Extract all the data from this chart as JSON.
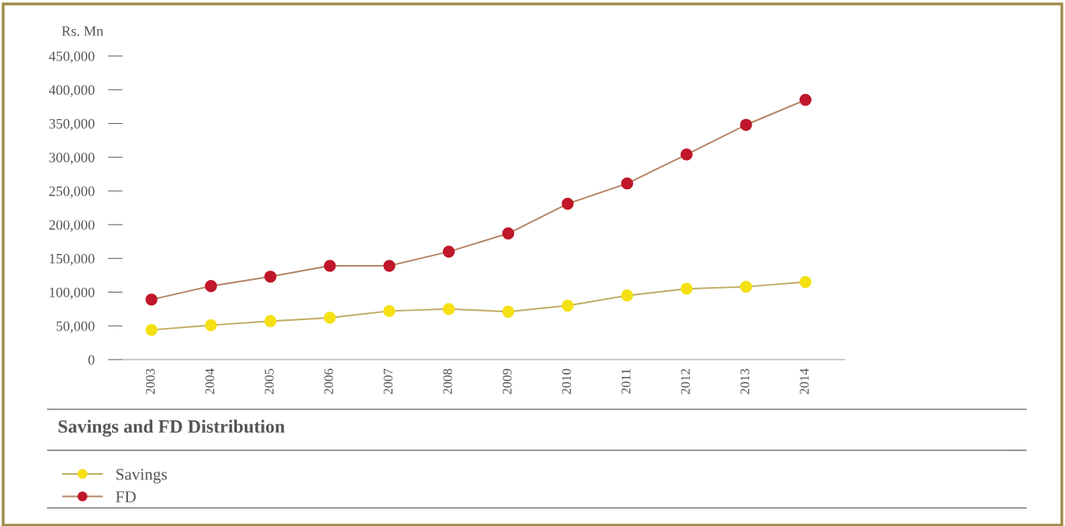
{
  "chart_data": {
    "type": "line",
    "title": "Savings and FD Distribution",
    "ylabel": "Rs. Mn",
    "categories": [
      "2003",
      "2004",
      "2005",
      "2006",
      "2007",
      "2008",
      "2009",
      "2010",
      "2011",
      "2012",
      "2013",
      "2014"
    ],
    "series": [
      {
        "name": "Savings",
        "color": "#f5e014",
        "values": [
          44000,
          51000,
          57000,
          62000,
          72000,
          75000,
          71000,
          80000,
          95000,
          105000,
          108000,
          115000
        ]
      },
      {
        "name": "FD",
        "color": "#c0172a",
        "values": [
          89000,
          109000,
          123000,
          139000,
          139000,
          160000,
          187000,
          231000,
          261000,
          304000,
          348000,
          385000
        ]
      }
    ],
    "ylim": [
      0,
      450000
    ],
    "yticks": [
      {
        "value": 0,
        "label": "0"
      },
      {
        "value": 50000,
        "label": "50,000"
      },
      {
        "value": 100000,
        "label": "100,000"
      },
      {
        "value": 150000,
        "label": "150,000"
      },
      {
        "value": 200000,
        "label": "200,000"
      },
      {
        "value": 250000,
        "label": "250,000"
      },
      {
        "value": 300000,
        "label": "300,000"
      },
      {
        "value": 350000,
        "label": "350,000"
      },
      {
        "value": 400000,
        "label": "400,000"
      },
      {
        "value": 450000,
        "label": "450,000"
      }
    ],
    "grid": false,
    "legend": "bottom",
    "marker": "circle",
    "line_style": "solid"
  }
}
